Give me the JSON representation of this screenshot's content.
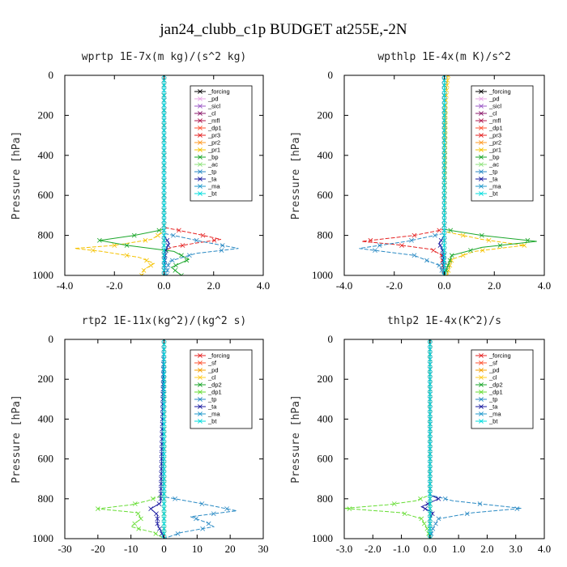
{
  "figure_title": "jan24_clubb_c1p  BUDGET at255E,-2N",
  "chart_data": [
    {
      "type": "line",
      "title": "wprtp  1E-7x(m kg)/(s^2 kg)",
      "ylabel": "Pressure [hPa]",
      "xlim": [
        -4,
        4
      ],
      "ylim": [
        1000,
        0
      ],
      "xticks": [
        -4,
        -2,
        0,
        2,
        4
      ],
      "xtick_labels": [
        "-4.0",
        "-2.0",
        "0.0",
        "2.0",
        "4.0"
      ],
      "yticks": [
        0,
        200,
        400,
        600,
        800,
        1000
      ],
      "ytick_labels": [
        "0",
        "200",
        "400",
        "600",
        "800",
        "1000"
      ],
      "legend_position": "top-right",
      "series": [
        {
          "name": "_forcing",
          "color": "#000000",
          "y": [
            0,
            750,
            1000
          ],
          "x": [
            0,
            0,
            0
          ]
        },
        {
          "name": "_pd",
          "color": "#e8a6e6",
          "y": [
            0,
            1000
          ],
          "x": [
            0,
            0
          ]
        },
        {
          "name": "_sicl",
          "color": "#9b59c6",
          "y": [
            0,
            1000
          ],
          "x": [
            0,
            0
          ]
        },
        {
          "name": "_cl",
          "color": "#8b1a6b",
          "y": [
            0,
            1000
          ],
          "x": [
            0,
            0
          ]
        },
        {
          "name": "_mfl",
          "color": "#b0194f",
          "y": [
            0,
            1000
          ],
          "x": [
            0,
            0
          ]
        },
        {
          "name": "_dp1",
          "color": "#ff5533",
          "y": [
            0,
            1000
          ],
          "x": [
            0,
            0
          ]
        },
        {
          "name": "_pr3",
          "color": "#e52222",
          "y": [
            0,
            760,
            790,
            820,
            840,
            860,
            880,
            1000
          ],
          "x": [
            0,
            0,
            1.2,
            2.3,
            1.2,
            0.3,
            0,
            0
          ]
        },
        {
          "name": "_pr2",
          "color": "#ff9922",
          "y": [
            0,
            1000
          ],
          "x": [
            0,
            0
          ]
        },
        {
          "name": "_pr1",
          "color": "#f5c200",
          "y": [
            0,
            780,
            820,
            850,
            865,
            880,
            910,
            940,
            970,
            1000
          ],
          "x": [
            0,
            0,
            -0.5,
            -2.0,
            -3.6,
            -2.5,
            -1.0,
            -0.4,
            -0.8,
            -0.9
          ]
        },
        {
          "name": "_bp",
          "color": "#1aa62a",
          "y": [
            0,
            770,
            800,
            825,
            850,
            880,
            920,
            960,
            1000
          ],
          "x": [
            0,
            0,
            -1.2,
            -2.6,
            -1.5,
            0.4,
            1.0,
            0.3,
            0.7
          ]
        },
        {
          "name": "_ac",
          "color": "#8ee27c",
          "y": [
            0,
            1000
          ],
          "x": [
            0,
            0
          ]
        },
        {
          "name": "_tp",
          "color": "#2a8ac4",
          "y": [
            0,
            790,
            830,
            865,
            890,
            930,
            1000
          ],
          "x": [
            0,
            0,
            1.5,
            3.0,
            1.3,
            0.2,
            0.1
          ]
        },
        {
          "name": "_ta",
          "color": "#1a1aa0",
          "y": [
            0,
            800,
            840,
            880,
            1000
          ],
          "x": [
            0,
            0,
            0.2,
            0.05,
            0
          ]
        },
        {
          "name": "_ma",
          "color": "#2299cc",
          "y": [
            0,
            1000
          ],
          "x": [
            0,
            0
          ]
        },
        {
          "name": "_bt",
          "color": "#00dddd",
          "y": [
            0,
            1000
          ],
          "x": [
            0,
            0
          ]
        }
      ]
    },
    {
      "type": "line",
      "title": "wpthlp  1E-4x(m K)/s^2",
      "ylabel": "Pressure [hPa]",
      "xlim": [
        -4,
        4
      ],
      "ylim": [
        1000,
        0
      ],
      "xticks": [
        -4,
        -2,
        0,
        2,
        4
      ],
      "xtick_labels": [
        "-4.0",
        "-2.0",
        "0.0",
        "2.0",
        "4.0"
      ],
      "yticks": [
        0,
        200,
        400,
        600,
        800,
        1000
      ],
      "ytick_labels": [
        "0",
        "200",
        "400",
        "600",
        "800",
        "1000"
      ],
      "legend_position": "top-right",
      "series": [
        {
          "name": "_forcing",
          "color": "#000000",
          "y": [
            0,
            1000
          ],
          "x": [
            0,
            0
          ]
        },
        {
          "name": "_pd",
          "color": "#e8a6e6",
          "y": [
            0,
            1000
          ],
          "x": [
            0,
            0
          ]
        },
        {
          "name": "_sicl",
          "color": "#9b59c6",
          "y": [
            0,
            1000
          ],
          "x": [
            0,
            0
          ]
        },
        {
          "name": "_cl",
          "color": "#8b1a6b",
          "y": [
            0,
            1000
          ],
          "x": [
            0,
            0
          ]
        },
        {
          "name": "_mfl",
          "color": "#b0194f",
          "y": [
            0,
            1000
          ],
          "x": [
            0,
            0
          ]
        },
        {
          "name": "_dp1",
          "color": "#ff5533",
          "y": [
            0,
            1000
          ],
          "x": [
            0,
            0
          ]
        },
        {
          "name": "_pr3",
          "color": "#e52222",
          "y": [
            0,
            770,
            800,
            830,
            845,
            870,
            900,
            1000
          ],
          "x": [
            0,
            0,
            -1.2,
            -3.3,
            -2.0,
            -0.5,
            -0.1,
            0
          ]
        },
        {
          "name": "_pr2",
          "color": "#ff9922",
          "y": [
            0,
            1000
          ],
          "x": [
            0,
            0
          ]
        },
        {
          "name": "_pr1",
          "color": "#f5c200",
          "y": [
            0,
            60,
            150,
            780,
            820,
            850,
            880,
            920,
            1000
          ],
          "x": [
            0.15,
            0.1,
            0.05,
            0,
            1.5,
            3.2,
            1.2,
            0.3,
            0.1
          ]
        },
        {
          "name": "_bp",
          "color": "#1aa62a",
          "y": [
            0,
            770,
            800,
            830,
            860,
            900,
            1000
          ],
          "x": [
            0,
            0,
            1.5,
            3.7,
            1.5,
            0.3,
            0
          ]
        },
        {
          "name": "_ac",
          "color": "#8ee27c",
          "y": [
            0,
            1000
          ],
          "x": [
            0,
            0
          ]
        },
        {
          "name": "_tp",
          "color": "#2a8ac4",
          "y": [
            0,
            790,
            830,
            865,
            900,
            950,
            1000
          ],
          "x": [
            0,
            0,
            -1.5,
            -3.4,
            -1.2,
            -0.2,
            0
          ]
        },
        {
          "name": "_ta",
          "color": "#1a1aa0",
          "y": [
            0,
            800,
            840,
            880,
            1000
          ],
          "x": [
            0,
            0,
            -0.2,
            -0.05,
            0
          ]
        },
        {
          "name": "_ma",
          "color": "#2299cc",
          "y": [
            0,
            1000
          ],
          "x": [
            0,
            0
          ]
        },
        {
          "name": "_bt",
          "color": "#00dddd",
          "y": [
            0,
            1000
          ],
          "x": [
            0,
            0
          ]
        }
      ]
    },
    {
      "type": "line",
      "title": "rtp2  1E-11x(kg^2)/(kg^2 s)",
      "ylabel": "Pressure [hPa]",
      "xlim": [
        -30,
        30
      ],
      "ylim": [
        1000,
        0
      ],
      "xticks": [
        -30,
        -20,
        -10,
        0,
        10,
        20,
        30
      ],
      "xtick_labels": [
        "-30",
        "-20",
        "-10",
        "0",
        "10",
        "20",
        "30"
      ],
      "yticks": [
        0,
        200,
        400,
        600,
        800,
        1000
      ],
      "ytick_labels": [
        "0",
        "200",
        "400",
        "600",
        "800",
        "1000"
      ],
      "legend_position": "top-right",
      "series": [
        {
          "name": "_forcing",
          "color": "#e52222",
          "y": [
            0,
            1000
          ],
          "x": [
            0,
            0
          ]
        },
        {
          "name": "_sf",
          "color": "#ff5533",
          "y": [
            0,
            1000
          ],
          "x": [
            0,
            0
          ]
        },
        {
          "name": "_pd",
          "color": "#f5a000",
          "y": [
            0,
            1000
          ],
          "x": [
            0,
            0
          ]
        },
        {
          "name": "_cl",
          "color": "#ffcc22",
          "y": [
            0,
            1000
          ],
          "x": [
            0,
            0
          ]
        },
        {
          "name": "_dp2",
          "color": "#1aa62a",
          "y": [
            0,
            1000
          ],
          "x": [
            0,
            0
          ]
        },
        {
          "name": "_dp1",
          "color": "#66dd33",
          "y": [
            0,
            780,
            810,
            830,
            850,
            870,
            900,
            940,
            970,
            1000
          ],
          "x": [
            0,
            0,
            -5,
            -10,
            -20,
            -8,
            -7,
            -10,
            -3,
            0
          ]
        },
        {
          "name": "_tp",
          "color": "#2a8ac4",
          "y": [
            0,
            790,
            820,
            860,
            890,
            920,
            940,
            970,
            1000
          ],
          "x": [
            0,
            0,
            10,
            22,
            8,
            13,
            15,
            5,
            0
          ]
        },
        {
          "name": "_ta",
          "color": "#1a1aa0",
          "y": [
            0,
            820,
            850,
            880,
            930,
            960,
            1000
          ],
          "x": [
            0,
            -1,
            -4,
            -2,
            -2,
            -1,
            0
          ]
        },
        {
          "name": "_ma",
          "color": "#2299cc",
          "y": [
            0,
            1000
          ],
          "x": [
            0,
            0
          ]
        },
        {
          "name": "_bt",
          "color": "#00dddd",
          "y": [
            0,
            1000
          ],
          "x": [
            0,
            0
          ]
        }
      ]
    },
    {
      "type": "line",
      "title": "thlp2  1E-4x(K^2)/s",
      "ylabel": "Pressure [hPa]",
      "xlim": [
        -3,
        4
      ],
      "ylim": [
        1000,
        0
      ],
      "xticks": [
        -3,
        -2,
        -1,
        0,
        1,
        2,
        3,
        4
      ],
      "xtick_labels": [
        "-3.0",
        "-2.0",
        "-1.0",
        "0.0",
        "1.0",
        "2.0",
        "3.0",
        "4.0"
      ],
      "yticks": [
        0,
        200,
        400,
        600,
        800,
        1000
      ],
      "ytick_labels": [
        "0",
        "200",
        "400",
        "600",
        "800",
        "1000"
      ],
      "legend_position": "top-right",
      "series": [
        {
          "name": "_forcing",
          "color": "#e52222",
          "y": [
            0,
            1000
          ],
          "x": [
            0,
            0
          ]
        },
        {
          "name": "_sf",
          "color": "#ff5533",
          "y": [
            0,
            1000
          ],
          "x": [
            0,
            0
          ]
        },
        {
          "name": "_pd",
          "color": "#f5a000",
          "y": [
            0,
            1000
          ],
          "x": [
            0,
            0
          ]
        },
        {
          "name": "_cl",
          "color": "#ffcc22",
          "y": [
            0,
            1000
          ],
          "x": [
            0,
            0
          ]
        },
        {
          "name": "_dp2",
          "color": "#1aa62a",
          "y": [
            0,
            1000
          ],
          "x": [
            0,
            0
          ]
        },
        {
          "name": "_dp1",
          "color": "#66dd33",
          "y": [
            0,
            780,
            810,
            830,
            848,
            870,
            900,
            950,
            1000
          ],
          "x": [
            0,
            0,
            -0.5,
            -1.5,
            -3.0,
            -1.0,
            -0.3,
            -0.1,
            0
          ]
        },
        {
          "name": "_tp",
          "color": "#2a8ac4",
          "y": [
            0,
            780,
            810,
            848,
            870,
            900,
            950,
            1000
          ],
          "x": [
            0,
            0,
            0.8,
            3.2,
            1.5,
            0.3,
            0.1,
            0
          ]
        },
        {
          "name": "_ta",
          "color": "#1a1aa0",
          "y": [
            0,
            780,
            800,
            840,
            870,
            900,
            1000
          ],
          "x": [
            0,
            0,
            0.3,
            -0.3,
            0.1,
            0,
            0
          ]
        },
        {
          "name": "_ma",
          "color": "#2299cc",
          "y": [
            0,
            1000
          ],
          "x": [
            0,
            0
          ]
        },
        {
          "name": "_bt",
          "color": "#00dddd",
          "y": [
            0,
            1000
          ],
          "x": [
            0,
            0
          ]
        }
      ]
    }
  ]
}
